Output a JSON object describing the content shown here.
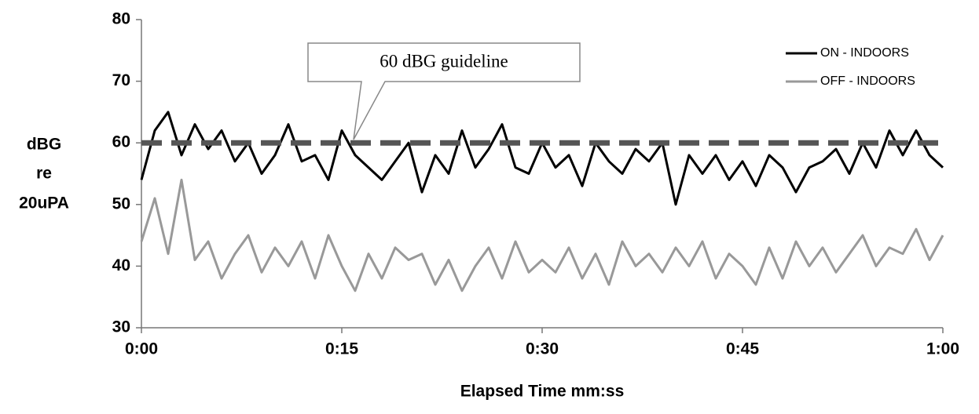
{
  "chart_data": {
    "type": "line",
    "x_label": "Elapsed Time mm:ss",
    "y_label": [
      "dBG",
      "re",
      "20uPA"
    ],
    "xlim": [
      0,
      60
    ],
    "xticks": [
      {
        "value": 0,
        "label": "0:00"
      },
      {
        "value": 15,
        "label": "0:15"
      },
      {
        "value": 30,
        "label": "0:30"
      },
      {
        "value": 45,
        "label": "0:45"
      },
      {
        "value": 60,
        "label": "1:00"
      }
    ],
    "ylim": [
      30,
      80
    ],
    "yticks": [
      30,
      40,
      50,
      60,
      70,
      80
    ],
    "legend": "top-right",
    "guideline": {
      "value": 60,
      "label": "60 dBG guideline",
      "color": "#555555"
    },
    "x": [
      0,
      1,
      2,
      3,
      4,
      5,
      6,
      7,
      8,
      9,
      10,
      11,
      12,
      13,
      14,
      15,
      16,
      17,
      18,
      19,
      20,
      21,
      22,
      23,
      24,
      25,
      26,
      27,
      28,
      29,
      30,
      31,
      32,
      33,
      34,
      35,
      36,
      37,
      38,
      39,
      40,
      41,
      42,
      43,
      44,
      45,
      46,
      47,
      48,
      49,
      50,
      51,
      52,
      53,
      54,
      55,
      56,
      57,
      58,
      59,
      60
    ],
    "series": [
      {
        "name": "ON - INDOORS",
        "color": "#000000",
        "values": [
          54,
          62,
          65,
          58,
          63,
          59,
          62,
          57,
          60,
          55,
          58,
          63,
          57,
          58,
          54,
          62,
          58,
          56,
          54,
          57,
          60,
          52,
          58,
          55,
          62,
          56,
          59,
          63,
          56,
          55,
          60,
          56,
          58,
          53,
          60,
          57,
          55,
          59,
          57,
          60,
          50,
          58,
          55,
          58,
          54,
          57,
          53,
          58,
          56,
          52,
          56,
          57,
          59,
          55,
          60,
          56,
          62,
          58,
          62,
          58,
          56
        ]
      },
      {
        "name": "OFF - INDOORS",
        "color": "#999999",
        "values": [
          44,
          51,
          42,
          54,
          41,
          44,
          38,
          42,
          45,
          39,
          43,
          40,
          44,
          38,
          45,
          40,
          36,
          42,
          38,
          43,
          41,
          42,
          37,
          41,
          36,
          40,
          43,
          38,
          44,
          39,
          41,
          39,
          43,
          38,
          42,
          37,
          44,
          40,
          42,
          39,
          43,
          40,
          44,
          38,
          42,
          40,
          37,
          43,
          38,
          44,
          40,
          43,
          39,
          42,
          45,
          40,
          43,
          42,
          46,
          41,
          45
        ]
      }
    ]
  }
}
